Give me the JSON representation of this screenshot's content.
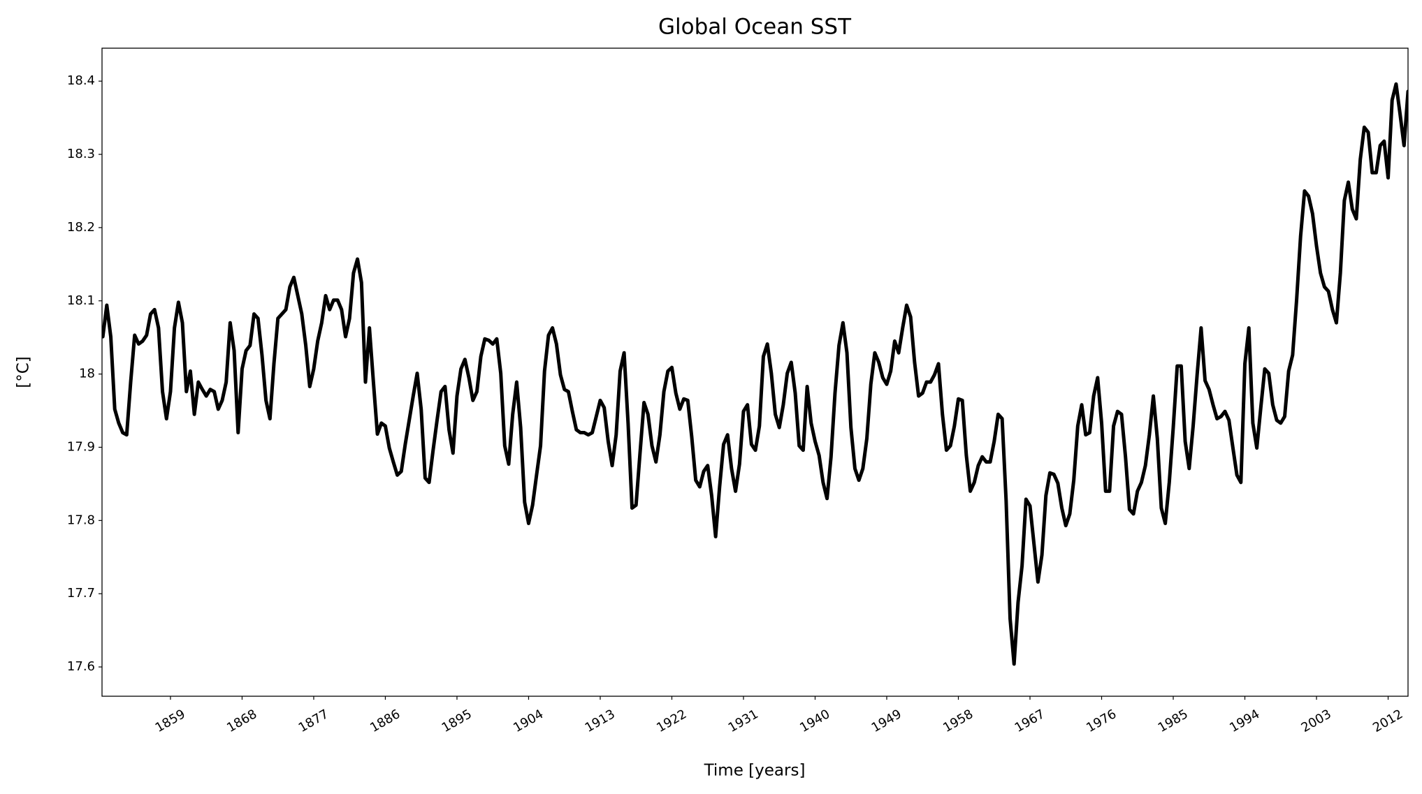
{
  "chart_data": {
    "type": "line",
    "title": "Global Ocean SST",
    "xlabel": "Time [years]",
    "ylabel": "[°C]",
    "color": "#000000",
    "xlim": [
      1850.4,
      2014.5
    ],
    "ylim": [
      17.56,
      18.445
    ],
    "xticks": [
      1859,
      1868,
      1877,
      1886,
      1895,
      1904,
      1913,
      1922,
      1931,
      1940,
      1949,
      1958,
      1967,
      1976,
      1985,
      1994,
      2003,
      2012
    ],
    "yticks": [
      17.6,
      17.7,
      17.8,
      17.9,
      18.0,
      18.1,
      18.2,
      18.3,
      18.4
    ],
    "x": [
      1850.5,
      1851,
      1851.5,
      1852,
      1852.5,
      1853,
      1853.5,
      1854,
      1854.5,
      1855,
      1855.5,
      1856,
      1856.5,
      1857,
      1857.5,
      1858,
      1858.5,
      1859,
      1859.5,
      1860,
      1860.5,
      1861,
      1861.5,
      1862,
      1862.5,
      1863,
      1863.5,
      1864,
      1864.5,
      1865,
      1865.5,
      1866,
      1866.5,
      1867,
      1867.5,
      1868,
      1868.5,
      1869,
      1869.5,
      1870,
      1870.5,
      1871,
      1871.5,
      1872,
      1872.5,
      1873,
      1873.5,
      1874,
      1874.5,
      1875,
      1875.5,
      1876,
      1876.5,
      1877,
      1877.5,
      1878,
      1878.5,
      1879,
      1879.5,
      1880,
      1880.5,
      1881,
      1881.5,
      1882,
      1882.5,
      1883,
      1883.5,
      1884,
      1884.5,
      1885,
      1885.5,
      1886,
      1886.5,
      1887,
      1887.5,
      1888,
      1888.5,
      1889,
      1889.5,
      1890,
      1890.5,
      1891,
      1891.5,
      1892,
      1892.5,
      1893,
      1893.5,
      1894,
      1894.5,
      1895,
      1895.5,
      1896,
      1896.5,
      1897,
      1897.5,
      1898,
      1898.5,
      1899,
      1899.5,
      1900,
      1900.5,
      1901,
      1901.5,
      1902,
      1902.5,
      1903,
      1903.5,
      1904,
      1904.5,
      1905,
      1905.5,
      1906,
      1906.5,
      1907,
      1907.5,
      1908,
      1908.5,
      1909,
      1909.5,
      1910,
      1910.5,
      1911,
      1911.5,
      1912,
      1912.5,
      1913,
      1913.5,
      1914,
      1914.5,
      1915,
      1915.5,
      1916,
      1916.5,
      1917,
      1917.5,
      1918,
      1918.5,
      1919,
      1919.5,
      1920,
      1920.5,
      1921,
      1921.5,
      1922,
      1922.5,
      1923,
      1923.5,
      1924,
      1924.5,
      1925,
      1925.5,
      1926,
      1926.5,
      1927,
      1927.5,
      1928,
      1928.5,
      1929,
      1929.5,
      1930,
      1930.5,
      1931,
      1931.5,
      1932,
      1932.5,
      1933,
      1933.5,
      1934,
      1934.5,
      1935,
      1935.5,
      1936,
      1936.5,
      1937,
      1937.5,
      1938,
      1938.5,
      1939,
      1939.5,
      1940,
      1940.5,
      1941,
      1941.5,
      1942,
      1942.5,
      1943,
      1943.5,
      1944,
      1944.5,
      1945,
      1945.5,
      1946,
      1946.5,
      1947,
      1947.5,
      1948,
      1948.5,
      1949,
      1949.5,
      1950,
      1950.5,
      1951,
      1951.5,
      1952,
      1952.5,
      1953,
      1953.5,
      1954,
      1954.5,
      1955,
      1955.5,
      1956,
      1956.5,
      1957,
      1957.5,
      1958,
      1958.5,
      1959,
      1959.5,
      1960,
      1960.5,
      1961,
      1961.5,
      1962,
      1962.5,
      1963,
      1963.5,
      1964,
      1964.5,
      1965,
      1965.5,
      1966,
      1966.5,
      1967,
      1967.5,
      1968,
      1968.5,
      1969,
      1969.5,
      1970,
      1970.5,
      1971,
      1971.5,
      1972,
      1972.5,
      1973,
      1973.5,
      1974,
      1974.5,
      1975,
      1975.5,
      1976,
      1976.5,
      1977,
      1977.5,
      1978,
      1978.5,
      1979,
      1979.5,
      1980,
      1980.5,
      1981,
      1981.5,
      1982,
      1982.5,
      1983,
      1983.5,
      1984,
      1984.5,
      1985,
      1985.5,
      1986,
      1986.5,
      1987,
      1987.5,
      1988,
      1988.5,
      1989,
      1989.5,
      1990,
      1990.5,
      1991,
      1991.5,
      1992,
      1992.5,
      1993,
      1993.5,
      1994,
      1994.5,
      1995,
      1995.5,
      1996,
      1996.5,
      1997,
      1997.5,
      1998,
      1998.5,
      1999,
      1999.5,
      2000,
      2000.5,
      2001,
      2001.5,
      2002,
      2002.5,
      2003,
      2003.5,
      2004,
      2004.5,
      2005,
      2005.5,
      2006,
      2006.5,
      2007,
      2007.5,
      2008,
      2008.5,
      2009,
      2009.5,
      2010,
      2010.5,
      2011,
      2011.5,
      2012,
      2012.5,
      2013,
      2013.5,
      2014,
      2014.5
    ],
    "values": [
      18.051,
      18.094,
      18.051,
      17.952,
      17.933,
      17.92,
      17.917,
      17.989,
      18.053,
      18.041,
      18.045,
      18.053,
      18.082,
      18.088,
      18.063,
      17.976,
      17.939,
      17.976,
      18.063,
      18.098,
      18.07,
      17.976,
      18.004,
      17.945,
      17.989,
      17.979,
      17.97,
      17.979,
      17.976,
      17.952,
      17.964,
      17.989,
      18.07,
      18.032,
      17.92,
      18.007,
      18.032,
      18.039,
      18.082,
      18.076,
      18.026,
      17.964,
      17.939,
      18.014,
      18.076,
      18.082,
      18.088,
      18.119,
      18.132,
      18.107,
      18.082,
      18.039,
      17.983,
      18.007,
      18.045,
      18.07,
      18.107,
      18.088,
      18.101,
      18.101,
      18.088,
      18.051,
      18.076,
      18.138,
      18.157,
      18.125,
      17.989,
      18.063,
      17.989,
      17.918,
      17.933,
      17.929,
      17.899,
      17.88,
      17.862,
      17.867,
      17.904,
      17.937,
      17.97,
      18.001,
      17.952,
      17.858,
      17.852,
      17.896,
      17.937,
      17.976,
      17.983,
      17.924,
      17.892,
      17.97,
      18.007,
      18.02,
      17.995,
      17.964,
      17.976,
      18.024,
      18.048,
      18.046,
      18.041,
      18.048,
      18.001,
      17.902,
      17.877,
      17.945,
      17.989,
      17.927,
      17.825,
      17.796,
      17.821,
      17.862,
      17.902,
      18.004,
      18.053,
      18.063,
      18.041,
      17.999,
      17.979,
      17.976,
      17.949,
      17.924,
      17.92,
      17.92,
      17.917,
      17.92,
      17.942,
      17.964,
      17.954,
      17.908,
      17.875,
      17.917,
      18.004,
      18.029,
      17.933,
      17.817,
      17.821,
      17.892,
      17.961,
      17.945,
      17.902,
      17.88,
      17.917,
      17.976,
      18.004,
      18.009,
      17.974,
      17.952,
      17.966,
      17.964,
      17.914,
      17.855,
      17.846,
      17.867,
      17.875,
      17.834,
      17.778,
      17.846,
      17.904,
      17.917,
      17.871,
      17.84,
      17.877,
      17.949,
      17.958,
      17.904,
      17.896,
      17.929,
      18.024,
      18.041,
      18.001,
      17.945,
      17.927,
      17.958,
      18.001,
      18.016,
      17.974,
      17.902,
      17.896,
      17.983,
      17.933,
      17.908,
      17.889,
      17.852,
      17.83,
      17.887,
      17.974,
      18.039,
      18.07,
      18.029,
      17.927,
      17.871,
      17.855,
      17.871,
      17.912,
      17.986,
      18.029,
      18.016,
      17.995,
      17.986,
      18.004,
      18.045,
      18.029,
      18.063,
      18.094,
      18.078,
      18.016,
      17.97,
      17.974,
      17.989,
      17.989,
      17.999,
      18.014,
      17.945,
      17.896,
      17.902,
      17.929,
      17.966,
      17.964,
      17.889,
      17.84,
      17.852,
      17.875,
      17.887,
      17.88,
      17.88,
      17.908,
      17.945,
      17.939,
      17.827,
      17.666,
      17.604,
      17.688,
      17.738,
      17.829,
      17.82,
      17.768,
      17.716,
      17.753,
      17.834,
      17.865,
      17.863,
      17.851,
      17.817,
      17.793,
      17.809,
      17.855,
      17.929,
      17.958,
      17.917,
      17.92,
      17.97,
      17.995,
      17.933,
      17.84,
      17.84,
      17.929,
      17.949,
      17.945,
      17.887,
      17.815,
      17.809,
      17.84,
      17.852,
      17.875,
      17.917,
      17.97,
      17.912,
      17.817,
      17.796,
      17.852,
      17.927,
      18.011,
      18.011,
      17.908,
      17.871,
      17.929,
      17.999,
      18.063,
      17.991,
      17.979,
      17.958,
      17.939,
      17.942,
      17.949,
      17.937,
      17.899,
      17.862,
      17.852,
      18.014,
      18.063,
      17.933,
      17.899,
      17.954,
      18.007,
      18.001,
      17.958,
      17.937,
      17.933,
      17.942,
      18.004,
      18.026,
      18.101,
      18.188,
      18.25,
      18.243,
      18.219,
      18.175,
      18.138,
      18.119,
      18.113,
      18.088,
      18.07,
      18.138,
      18.237,
      18.262,
      18.225,
      18.212,
      18.293,
      18.337,
      18.33,
      18.275,
      18.275,
      18.312,
      18.318,
      18.268,
      18.374,
      18.396,
      18.355,
      18.312,
      18.386
    ]
  }
}
